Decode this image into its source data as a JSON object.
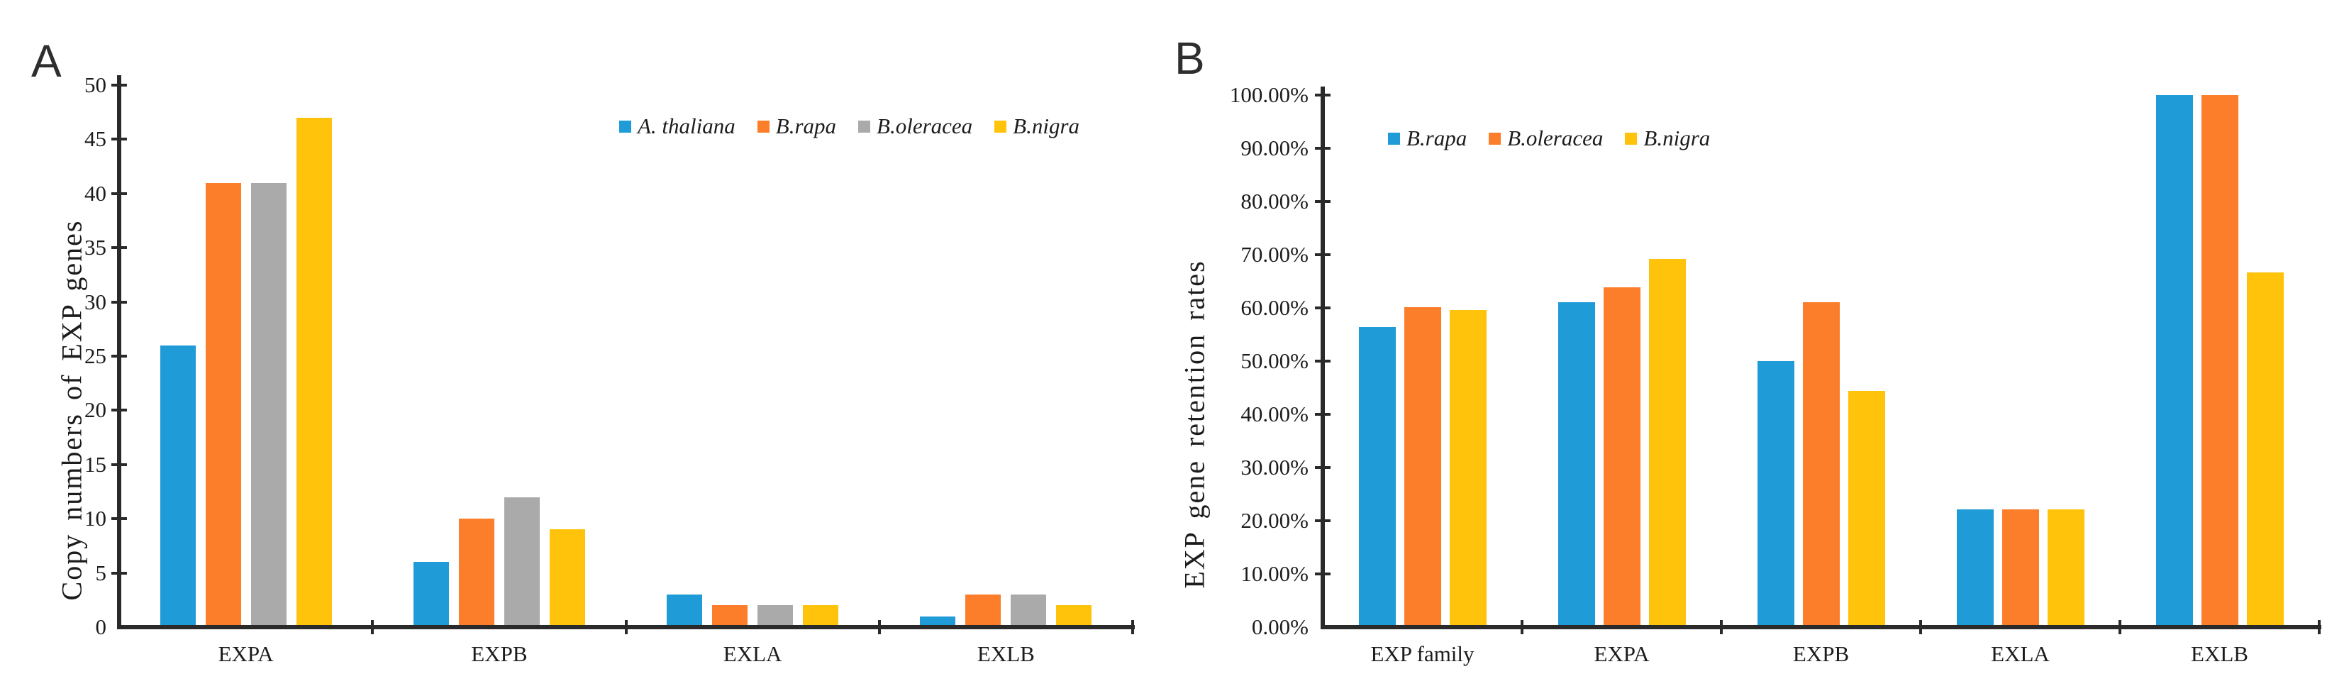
{
  "figure": {
    "background": "#ffffff",
    "panel_count": 2
  },
  "colors": {
    "axis": "#2a2a2a",
    "text": "#1c1c1c",
    "blue": "#1f9bd8",
    "orange": "#fc7d2a",
    "gray": "#aaaaaa",
    "yellow": "#ffc30b"
  },
  "chart_data": [
    {
      "type": "bar",
      "panel": "A",
      "title": "",
      "xlabel": "",
      "ylabel": "Copy numbers of EXP genes",
      "categories": [
        "EXPA",
        "EXPB",
        "EXLA",
        "EXLB"
      ],
      "series": [
        {
          "name": "A. thaliana",
          "color_key": "blue",
          "values": [
            26,
            6,
            3,
            1
          ]
        },
        {
          "name": "B.rapa",
          "color_key": "orange",
          "values": [
            41,
            10,
            2,
            3
          ]
        },
        {
          "name": "B.oleracea",
          "color_key": "gray",
          "values": [
            41,
            12,
            2,
            3
          ]
        },
        {
          "name": "B.nigra",
          "color_key": "yellow",
          "values": [
            47,
            9,
            2,
            2
          ]
        }
      ],
      "ylim": [
        0,
        50
      ],
      "ytick_labels": [
        "0",
        "5",
        "10",
        "15",
        "20",
        "25",
        "30",
        "35",
        "40",
        "45",
        "50"
      ],
      "grid": false,
      "legend_position": "top-right-inside"
    },
    {
      "type": "bar",
      "panel": "B",
      "title": "",
      "xlabel": "",
      "ylabel": "EXP gene retention rates",
      "categories": [
        "EXP family",
        "EXPA",
        "EXPB",
        "EXLA",
        "EXLB"
      ],
      "series": [
        {
          "name": "B.rapa",
          "color_key": "blue",
          "values": [
            56.4,
            61.1,
            50.0,
            22.2,
            100.0
          ]
        },
        {
          "name": "B.oleracea",
          "color_key": "orange",
          "values": [
            60.2,
            63.9,
            61.1,
            22.2,
            100.0
          ]
        },
        {
          "name": "B.nigra",
          "color_key": "yellow",
          "values": [
            59.6,
            69.2,
            44.4,
            22.2,
            66.7
          ]
        }
      ],
      "ylim": [
        0,
        100
      ],
      "ytick_labels": [
        "0.00%",
        "10.00%",
        "20.00%",
        "30.00%",
        "40.00%",
        "50.00%",
        "60.00%",
        "70.00%",
        "80.00%",
        "90.00%",
        "100.00%"
      ],
      "grid": false,
      "legend_position": "top-left-inside"
    }
  ]
}
